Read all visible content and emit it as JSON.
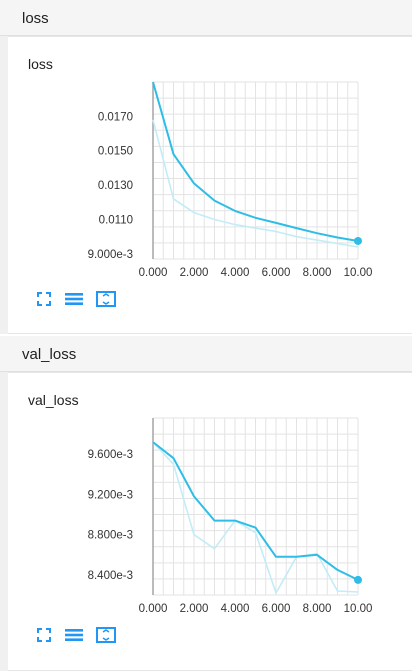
{
  "sections": [
    {
      "header": "loss",
      "card_title": "loss",
      "chart_data": {
        "type": "line",
        "title": "loss",
        "xlabel": "",
        "ylabel": "",
        "xlim": [
          0,
          10
        ],
        "ylim": [
          0.0087,
          0.019
        ],
        "x_ticks": [
          "0.000",
          "2.000",
          "4.000",
          "6.000",
          "8.000",
          "10.00"
        ],
        "y_ticks": [
          "0.0170",
          "0.0150",
          "0.0130",
          "0.0110",
          "9.000e-3"
        ],
        "y_tick_values": [
          0.017,
          0.015,
          0.013,
          0.011,
          0.009
        ],
        "series": [
          {
            "role": "smoothed",
            "x": [
              0,
              1,
              2,
              3,
              4,
              5,
              6,
              7,
              8,
              9,
              10
            ],
            "y": [
              0.019,
              0.0148,
              0.0131,
              0.0121,
              0.0115,
              0.0111,
              0.0108,
              0.0105,
              0.0102,
              0.00995,
              0.00975
            ]
          },
          {
            "role": "raw",
            "x": [
              0,
              1,
              2,
              3,
              4,
              5,
              6,
              7,
              8,
              9,
              10
            ],
            "y": [
              0.0168,
              0.0122,
              0.0114,
              0.011,
              0.0107,
              0.0105,
              0.0103,
              0.01,
              0.0098,
              0.0096,
              0.0094
            ]
          }
        ],
        "colors": {
          "smoothed": "#2ebde6",
          "raw": "#c2ecf7"
        }
      }
    },
    {
      "header": "val_loss",
      "card_title": "val_loss",
      "chart_data": {
        "type": "line",
        "title": "val_loss",
        "xlabel": "",
        "ylabel": "",
        "xlim": [
          0,
          10
        ],
        "ylim": [
          0.0082,
          0.00996
        ],
        "x_ticks": [
          "0.000",
          "2.000",
          "4.000",
          "6.000",
          "8.000",
          "10.00"
        ],
        "y_ticks": [
          "9.600e-3",
          "9.200e-3",
          "8.800e-3",
          "8.400e-3"
        ],
        "y_tick_values": [
          0.0096,
          0.0092,
          0.0088,
          0.0084
        ],
        "series": [
          {
            "role": "smoothed",
            "x": [
              0,
              1,
              2,
              3,
              4,
              5,
              6,
              7,
              8,
              9,
              10
            ],
            "y": [
              0.00972,
              0.00956,
              0.00918,
              0.00894,
              0.00894,
              0.00887,
              0.00858,
              0.00858,
              0.0086,
              0.00845,
              0.00835
            ]
          },
          {
            "role": "raw",
            "x": [
              0,
              1,
              2,
              3,
              4,
              5,
              6,
              7,
              8,
              9,
              10
            ],
            "y": [
              0.00972,
              0.0095,
              0.0088,
              0.00866,
              0.00894,
              0.00882,
              0.00822,
              0.00858,
              0.00861,
              0.00824,
              0.00823
            ]
          }
        ],
        "colors": {
          "smoothed": "#2ebde6",
          "raw": "#c2ecf7"
        }
      }
    }
  ],
  "toolbar": {
    "icons": [
      "fullscreen-icon",
      "list-icon",
      "fit-domain-icon"
    ],
    "color": "#2196f3"
  }
}
